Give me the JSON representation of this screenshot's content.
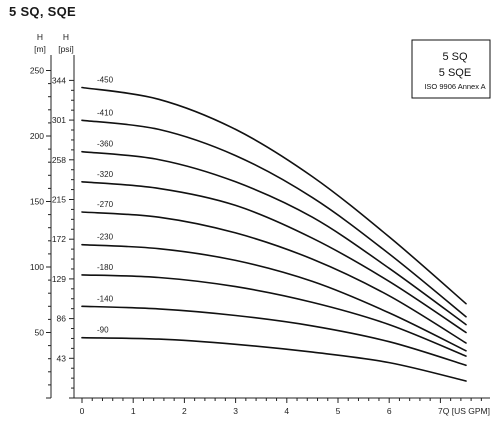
{
  "header": {
    "title": "5 SQ, SQE"
  },
  "colors": {
    "curve": "#111111",
    "axis": "#222222",
    "grid": "#888888"
  },
  "chart_data": {
    "type": "line",
    "legend": {
      "placement": "top-right",
      "lines": [
        "5 SQ",
        "5 SQE",
        "ISO 9906 Annex A"
      ]
    },
    "xlabel": "Q [US GPM]",
    "xlim": [
      0,
      8
    ],
    "x_ticks": [
      "0",
      "1",
      "2",
      "3",
      "4",
      "5",
      "6",
      "7"
    ],
    "y_axes": [
      {
        "name": "H",
        "unit": "[m]",
        "ticks": [
          "50",
          "100",
          "150",
          "200",
          "250"
        ],
        "ylim": [
          0,
          250
        ]
      },
      {
        "name": "H",
        "unit": "[psi]",
        "ticks": [
          "43",
          "86",
          "129",
          "172",
          "215",
          "258",
          "301",
          "344"
        ],
        "ylim": [
          0,
          350
        ]
      }
    ],
    "grid": false,
    "series": [
      {
        "name": "-450",
        "x": [
          0,
          1.5,
          3,
          4.5,
          6,
          7.5
        ],
        "y": [
          237,
          228,
          205,
          169,
          123,
          72
        ]
      },
      {
        "name": "-410",
        "x": [
          0,
          1.5,
          3,
          4.5,
          6,
          7.5
        ],
        "y": [
          212,
          205,
          185,
          153,
          110,
          62
        ]
      },
      {
        "name": "-360",
        "x": [
          0,
          1.5,
          3,
          4.5,
          6,
          7.5
        ],
        "y": [
          188,
          182,
          165,
          138,
          99,
          56
        ]
      },
      {
        "name": "-320",
        "x": [
          0,
          1.5,
          3,
          4.5,
          6,
          7.5
        ],
        "y": [
          165,
          160,
          147,
          122,
          89,
          50
        ]
      },
      {
        "name": "-270",
        "x": [
          0,
          1.5,
          3,
          4.5,
          6,
          7.5
        ],
        "y": [
          142,
          138,
          126,
          106,
          78,
          42
        ]
      },
      {
        "name": "-230",
        "x": [
          0,
          1.5,
          3,
          4.5,
          6,
          7.5
        ],
        "y": [
          117,
          114,
          105,
          89,
          65,
          36
        ]
      },
      {
        "name": "-180",
        "x": [
          0,
          1.5,
          3,
          4.5,
          6,
          7.5
        ],
        "y": [
          94,
          92,
          85,
          73,
          56,
          32
        ]
      },
      {
        "name": "-140",
        "x": [
          0,
          1.5,
          3,
          4.5,
          6,
          7.5
        ],
        "y": [
          70,
          68,
          63,
          55,
          43,
          25
        ]
      },
      {
        "name": "-90",
        "x": [
          0,
          1.5,
          3,
          4.5,
          6,
          7.5
        ],
        "y": [
          46,
          45,
          41,
          35,
          27,
          13
        ]
      }
    ]
  }
}
